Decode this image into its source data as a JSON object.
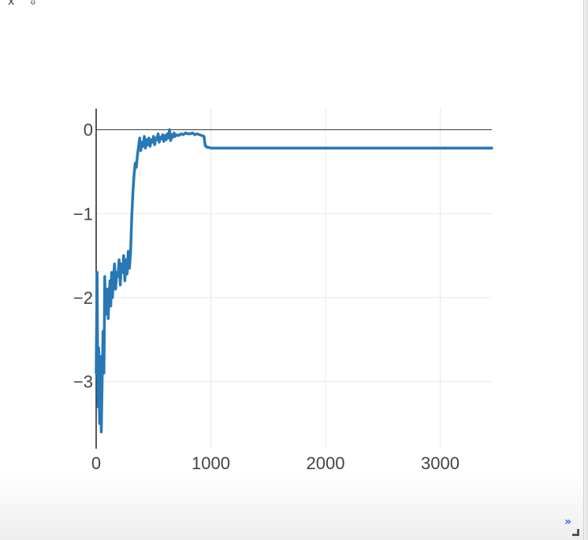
{
  "toolbar": {
    "close_glyph": "x",
    "download_glyph": "⇩"
  },
  "footer": {
    "expand_glyph": "»"
  },
  "colors": {
    "line": "#2878b5",
    "grid": "#e8e8e8",
    "zero_line": "#444444",
    "axis": "#222222",
    "tick_text": "#444444"
  },
  "chart_data": {
    "type": "line",
    "title": "",
    "xlabel": "",
    "ylabel": "",
    "xlim": [
      0,
      3450
    ],
    "ylim": [
      -3.8,
      0.25
    ],
    "x_ticks": [
      0,
      1000,
      2000,
      3000
    ],
    "x_tick_labels": [
      "0",
      "1000",
      "2000",
      "3000"
    ],
    "y_ticks": [
      0,
      -1,
      -2,
      -3
    ],
    "y_tick_labels": [
      "0",
      "−1",
      "−2",
      "−3"
    ],
    "grid": true,
    "series": [
      {
        "x": [
          0,
          8,
          15,
          22,
          30,
          38,
          45,
          52,
          60,
          68,
          75,
          82,
          90,
          98,
          105,
          112,
          120,
          128,
          135,
          142,
          150,
          160,
          170,
          180,
          190,
          200,
          210,
          220,
          230,
          240,
          250,
          260,
          270,
          280,
          290,
          300,
          310,
          320,
          330,
          340,
          350,
          360,
          370,
          380,
          390,
          400,
          410,
          420,
          430,
          440,
          450,
          460,
          470,
          480,
          490,
          500,
          510,
          520,
          530,
          540,
          550,
          560,
          570,
          580,
          590,
          600,
          610,
          620,
          630,
          640,
          650,
          660,
          670,
          680,
          690,
          700,
          720,
          740,
          760,
          780,
          800,
          820,
          840,
          860,
          880,
          900,
          920,
          940,
          950,
          955,
          960,
          965,
          970,
          980,
          1000,
          1050,
          1100,
          1200,
          1400,
          1700,
          2000,
          2500,
          3000,
          3450
        ],
        "y": [
          -2.9,
          -1.7,
          -3.3,
          -2.6,
          -3.5,
          -2.7,
          -3.6,
          -3.0,
          -2.4,
          -2.9,
          -1.75,
          -2.2,
          -2.1,
          -1.9,
          -2.25,
          -2.0,
          -1.8,
          -2.1,
          -1.7,
          -2.0,
          -1.8,
          -1.6,
          -1.9,
          -1.7,
          -1.75,
          -1.55,
          -1.85,
          -1.6,
          -1.7,
          -1.5,
          -1.8,
          -1.55,
          -1.72,
          -1.45,
          -1.65,
          -1.45,
          -1.05,
          -0.75,
          -0.55,
          -0.4,
          -0.45,
          -0.3,
          -0.2,
          -0.1,
          -0.25,
          -0.15,
          -0.2,
          -0.08,
          -0.22,
          -0.12,
          -0.18,
          -0.1,
          -0.2,
          -0.12,
          -0.15,
          -0.08,
          -0.18,
          -0.1,
          -0.12,
          -0.05,
          -0.15,
          -0.09,
          -0.11,
          -0.06,
          -0.14,
          -0.07,
          -0.12,
          -0.05,
          -0.1,
          0.0,
          -0.13,
          -0.06,
          -0.09,
          -0.04,
          -0.08,
          -0.06,
          -0.07,
          -0.05,
          -0.06,
          -0.04,
          -0.05,
          -0.05,
          -0.04,
          -0.06,
          -0.05,
          -0.06,
          -0.07,
          -0.08,
          -0.18,
          -0.2,
          -0.2,
          -0.21,
          -0.21,
          -0.21,
          -0.22,
          -0.22,
          -0.22,
          -0.22,
          -0.22,
          -0.22,
          -0.22,
          -0.22,
          -0.22,
          -0.22
        ]
      }
    ]
  }
}
